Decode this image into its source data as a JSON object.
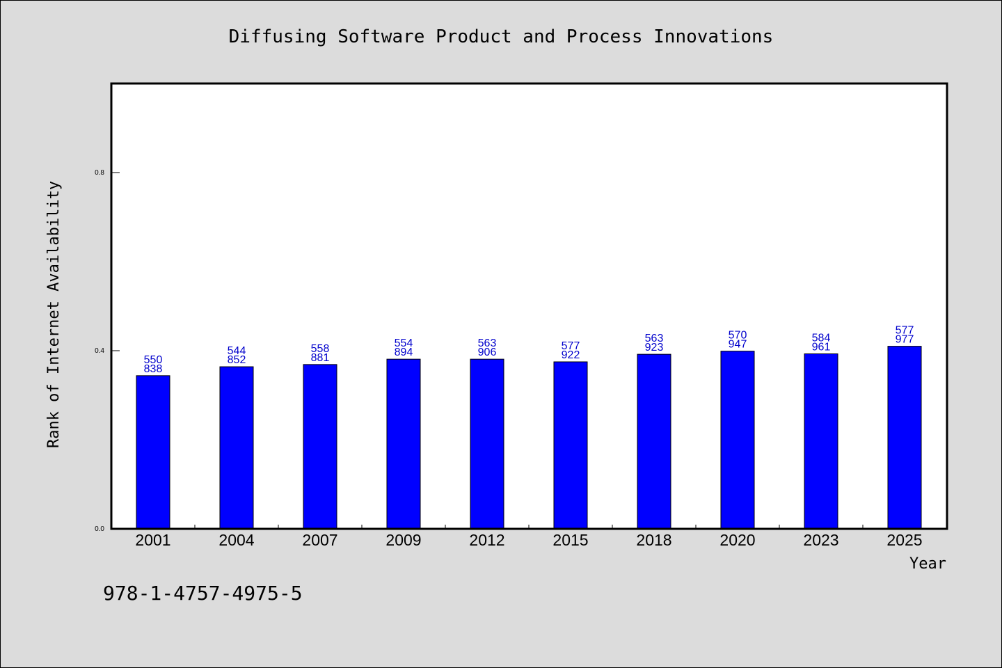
{
  "chart_data": {
    "type": "bar",
    "title": "Diffusing Software Product and Process Innovations",
    "xlabel": "Year",
    "ylabel": "Rank of Internet Availability",
    "categories": [
      "2001",
      "2004",
      "2007",
      "2009",
      "2012",
      "2015",
      "2018",
      "2020",
      "2023",
      "2025"
    ],
    "values": [
      0.344,
      0.364,
      0.369,
      0.381,
      0.381,
      0.375,
      0.392,
      0.399,
      0.393,
      0.41
    ],
    "label_top": [
      "550",
      "544",
      "558",
      "554",
      "563",
      "577",
      "563",
      "570",
      "584",
      "577"
    ],
    "label_bottom": [
      "838",
      "852",
      "881",
      "894",
      "906",
      "922",
      "923",
      "947",
      "961",
      "977"
    ],
    "yticks": [
      "0.0",
      "0.4",
      "0.8"
    ],
    "ylim": [
      0,
      1.0
    ],
    "grid": false,
    "bar_color": "#0000ff",
    "label_color": "#0000cc"
  },
  "footer": {
    "text": "978-1-4757-4975-5"
  }
}
